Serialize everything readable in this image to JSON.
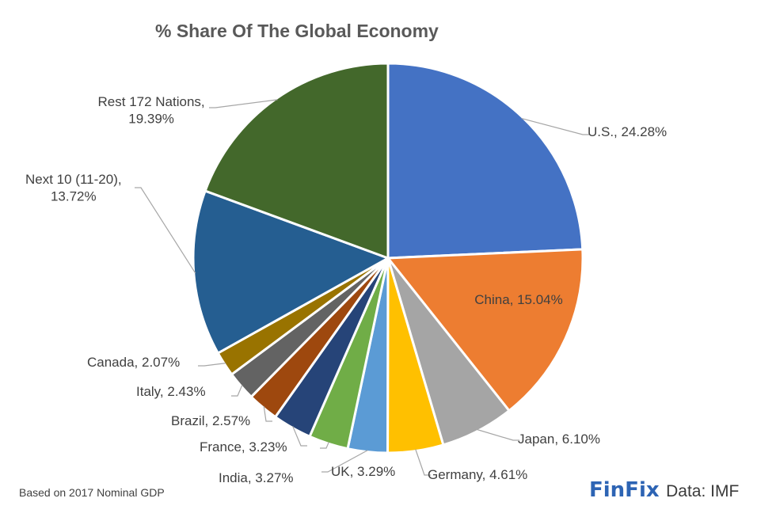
{
  "branding": {
    "logo_text": "FinFix",
    "source_text": "Data: IMF"
  },
  "footnote": "Based on 2017 Nominal GDP",
  "chart_data": {
    "type": "pie",
    "title": "% Share Of The Global Economy",
    "start_angle_deg": 0,
    "direction": "clockwise",
    "slices": [
      {
        "name": "U.S.",
        "value": 24.28,
        "label_lines": [
          "U.S., 24.28%"
        ],
        "color": "#4472c4"
      },
      {
        "name": "China",
        "value": 15.04,
        "label_lines": [
          "China, 15.04%"
        ],
        "color": "#ed7d31"
      },
      {
        "name": "Japan",
        "value": 6.1,
        "label_lines": [
          "Japan, 6.10%"
        ],
        "color": "#a5a5a5"
      },
      {
        "name": "Germany",
        "value": 4.61,
        "label_lines": [
          "Germany, 4.61%"
        ],
        "color": "#ffc000"
      },
      {
        "name": "UK",
        "value": 3.29,
        "label_lines": [
          "UK, 3.29%"
        ],
        "color": "#5b9bd5"
      },
      {
        "name": "India",
        "value": 3.27,
        "label_lines": [
          "India, 3.27%"
        ],
        "color": "#70ad47"
      },
      {
        "name": "France",
        "value": 3.23,
        "label_lines": [
          "France, 3.23%"
        ],
        "color": "#264478"
      },
      {
        "name": "Brazil",
        "value": 2.57,
        "label_lines": [
          "Brazil, 2.57%"
        ],
        "color": "#9e480e"
      },
      {
        "name": "Italy",
        "value": 2.43,
        "label_lines": [
          "Italy, 2.43%"
        ],
        "color": "#636363"
      },
      {
        "name": "Canada",
        "value": 2.07,
        "label_lines": [
          "Canada, 2.07%"
        ],
        "color": "#997300"
      },
      {
        "name": "Next 10 (11-20)",
        "value": 13.72,
        "label_lines": [
          "Next 10 (11-20),",
          "13.72%"
        ],
        "color": "#255e91"
      },
      {
        "name": "Rest 172 Nations",
        "value": 19.39,
        "label_lines": [
          "Rest 172 Nations,",
          "19.39%"
        ],
        "color": "#43682b"
      }
    ]
  }
}
